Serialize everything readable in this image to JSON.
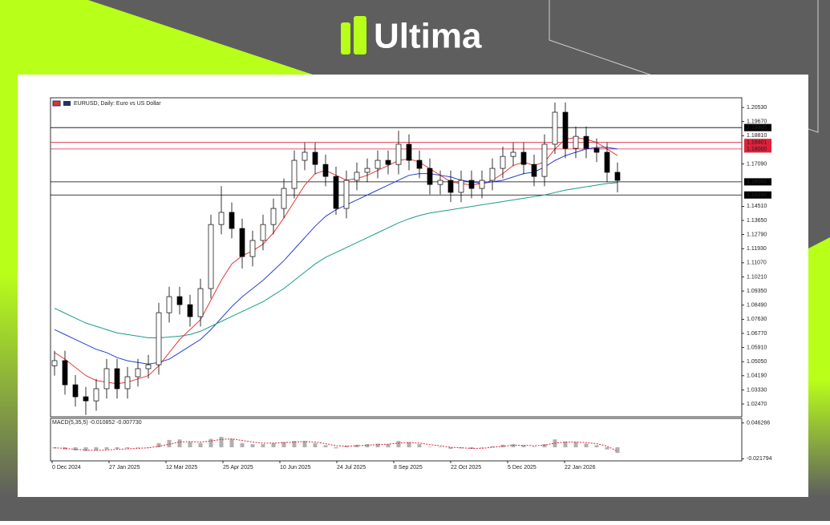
{
  "brand": "Ultima",
  "chart_data": [
    {
      "type": "candlestick",
      "title": "EURUSD, Daily:  Euro vs US Dollar",
      "x_labels": [
        "0 Dec 2024",
        "27 Jan 2025",
        "12 Mar 2025",
        "25 Apr 2025",
        "10 Jun 2025",
        "24 Jul 2025",
        "8 Sep 2025",
        "22 Oct 2025",
        "5 Dec 2025",
        "22 Jan 2026"
      ],
      "open": [
        1.048,
        1.0511,
        1.0364,
        1.0291,
        1.0266,
        1.034,
        1.0462,
        1.034,
        1.0413,
        1.0462,
        1.0486,
        1.0803,
        1.0901,
        1.0852,
        1.0779,
        1.095,
        1.134,
        1.1414,
        1.1316,
        1.1145,
        1.1243,
        1.134,
        1.1438,
        1.156,
        1.1731,
        1.178,
        1.1706,
        1.1633,
        1.1438,
        1.1609,
        1.1658,
        1.1682,
        1.1731,
        1.1706,
        1.1829,
        1.1731,
        1.1682,
        1.1584,
        1.1609,
        1.1536,
        1.1609,
        1.156,
        1.1609,
        1.1682,
        1.1755,
        1.178,
        1.1706,
        1.1633,
        1.1829,
        1.2024,
        1.1804,
        1.1877,
        1.1804,
        1.178,
        1.1658
      ],
      "high": [
        1.0571,
        1.0571,
        1.0424,
        1.0351,
        1.04,
        1.0522,
        1.0522,
        1.0473,
        1.0522,
        1.0546,
        1.0863,
        1.0961,
        1.0961,
        1.0912,
        1.101,
        1.14,
        1.1574,
        1.1474,
        1.1376,
        1.1303,
        1.14,
        1.1498,
        1.162,
        1.1791,
        1.184,
        1.184,
        1.1766,
        1.1693,
        1.1669,
        1.1718,
        1.1742,
        1.1791,
        1.1791,
        1.1911,
        1.1889,
        1.1791,
        1.1742,
        1.1669,
        1.1669,
        1.1669,
        1.1669,
        1.1669,
        1.1742,
        1.1815,
        1.184,
        1.184,
        1.1766,
        1.1889,
        1.2083,
        1.2084,
        1.1937,
        1.1937,
        1.1864,
        1.184,
        1.1718
      ],
      "low": [
        1.042,
        1.0304,
        1.0231,
        1.018,
        1.0206,
        1.028,
        1.028,
        1.028,
        1.0353,
        1.0402,
        1.0426,
        1.0743,
        1.0792,
        1.0719,
        1.0719,
        1.089,
        1.128,
        1.1256,
        1.1072,
        1.1085,
        1.1183,
        1.128,
        1.1378,
        1.15,
        1.1671,
        1.1646,
        1.1573,
        1.1399,
        1.1378,
        1.1549,
        1.1598,
        1.1622,
        1.1646,
        1.1646,
        1.1671,
        1.1622,
        1.1524,
        1.1524,
        1.1477,
        1.1476,
        1.15,
        1.15,
        1.1549,
        1.1622,
        1.1695,
        1.1646,
        1.1573,
        1.1573,
        1.1769,
        1.1744,
        1.1744,
        1.1744,
        1.172,
        1.1598,
        1.1536
      ],
      "close": [
        1.0511,
        1.0364,
        1.0291,
        1.0266,
        1.034,
        1.0462,
        1.034,
        1.0413,
        1.0462,
        1.0486,
        1.0803,
        1.0901,
        1.0852,
        1.0779,
        1.095,
        1.134,
        1.1414,
        1.1316,
        1.1145,
        1.1243,
        1.134,
        1.1438,
        1.156,
        1.1731,
        1.178,
        1.1706,
        1.1633,
        1.1438,
        1.1609,
        1.1658,
        1.1682,
        1.1731,
        1.1706,
        1.1829,
        1.1731,
        1.1682,
        1.1584,
        1.1609,
        1.1536,
        1.1609,
        1.156,
        1.1609,
        1.1682,
        1.1755,
        1.178,
        1.1706,
        1.1633,
        1.1829,
        1.2024,
        1.1804,
        1.1877,
        1.1804,
        1.178,
        1.1658,
        1.1609
      ],
      "series": [
        {
          "color": "#e8393a",
          "values": [
            1.056,
            1.052,
            1.047,
            1.042,
            1.039,
            1.038,
            1.037,
            1.038,
            1.04,
            1.042,
            1.048,
            1.056,
            1.064,
            1.07,
            1.076,
            1.088,
            1.1,
            1.11,
            1.115,
            1.118,
            1.122,
            1.129,
            1.138,
            1.148,
            1.158,
            1.165,
            1.167,
            1.164,
            1.161,
            1.162,
            1.164,
            1.167,
            1.17,
            1.173,
            1.174,
            1.172,
            1.168,
            1.164,
            1.16,
            1.159,
            1.158,
            1.159,
            1.161,
            1.165,
            1.17,
            1.172,
            1.17,
            1.172,
            1.18,
            1.186,
            1.187,
            1.186,
            1.184,
            1.18,
            1.176
          ]
        },
        {
          "color": "#2b3fd1",
          "values": [
            1.07,
            1.067,
            1.064,
            1.061,
            1.058,
            1.056,
            1.053,
            1.051,
            1.05,
            1.049,
            1.05,
            1.052,
            1.056,
            1.06,
            1.064,
            1.07,
            1.077,
            1.084,
            1.09,
            1.095,
            1.1,
            1.106,
            1.112,
            1.119,
            1.126,
            1.133,
            1.139,
            1.143,
            1.146,
            1.149,
            1.152,
            1.155,
            1.158,
            1.161,
            1.164,
            1.165,
            1.165,
            1.164,
            1.163,
            1.161,
            1.16,
            1.159,
            1.16,
            1.161,
            1.163,
            1.165,
            1.166,
            1.169,
            1.173,
            1.176,
            1.178,
            1.18,
            1.181,
            1.181,
            1.18
          ]
        },
        {
          "color": "#1d9a8a",
          "values": [
            1.083,
            1.08,
            1.077,
            1.074,
            1.072,
            1.07,
            1.068,
            1.067,
            1.066,
            1.065,
            1.065,
            1.0655,
            1.066,
            1.067,
            1.069,
            1.072,
            1.075,
            1.078,
            1.081,
            1.084,
            1.087,
            1.091,
            1.095,
            1.1,
            1.105,
            1.11,
            1.114,
            1.117,
            1.12,
            1.123,
            1.126,
            1.129,
            1.132,
            1.135,
            1.1375,
            1.1395,
            1.141,
            1.142,
            1.143,
            1.144,
            1.145,
            1.146,
            1.147,
            1.148,
            1.149,
            1.15,
            1.151,
            1.152,
            1.1535,
            1.155,
            1.156,
            1.157,
            1.158,
            1.159,
            1.1595
          ]
        }
      ],
      "levels": [
        {
          "value": 1.19305,
          "label": "1.19305",
          "color": "#000000"
        },
        {
          "value": 1.18401,
          "label": "1.18401",
          "color": "#e0203a"
        },
        {
          "value": 1.18,
          "label": "1.18000",
          "color": "#e0203a"
        },
        {
          "value": 1.16,
          "label": "1.16000",
          "color": "#000000"
        },
        {
          "value": 1.152,
          "label": "1.15200",
          "color": "#000000"
        }
      ],
      "ylim": [
        1.0169,
        1.2112
      ],
      "yticks": [
        {
          "value": 1.2053,
          "label": "1.20530"
        },
        {
          "value": 1.1967,
          "label": "1.19670"
        },
        {
          "value": 1.1881,
          "label": "1.18810"
        },
        {
          "value": 1.1709,
          "label": "1.17090"
        },
        {
          "value": 1.1451,
          "label": "1.14510"
        },
        {
          "value": 1.1365,
          "label": "1.13650"
        },
        {
          "value": 1.1279,
          "label": "1.12790"
        },
        {
          "value": 1.1193,
          "label": "1.11930"
        },
        {
          "value": 1.1107,
          "label": "1.11070"
        },
        {
          "value": 1.1021,
          "label": "1.10210"
        },
        {
          "value": 1.0935,
          "label": "1.09350"
        },
        {
          "value": 1.0849,
          "label": "1.08490"
        },
        {
          "value": 1.0763,
          "label": "1.07630"
        },
        {
          "value": 1.0677,
          "label": "1.06770"
        },
        {
          "value": 1.0591,
          "label": "1.05910"
        },
        {
          "value": 1.0505,
          "label": "1.05050"
        },
        {
          "value": 1.0419,
          "label": "1.04190"
        },
        {
          "value": 1.0333,
          "label": "1.03330"
        },
        {
          "value": 1.0247,
          "label": "1.02470"
        }
      ]
    },
    {
      "type": "macd",
      "title": "MACD(5,35,5) -0.010852 -0.007730",
      "values": [
        -0.002,
        -0.004,
        -0.006,
        -0.007,
        -0.006,
        -0.004,
        -0.003,
        -0.002,
        -0.001,
        0.0,
        0.008,
        0.014,
        0.015,
        0.01,
        0.008,
        0.016,
        0.02,
        0.016,
        0.008,
        0.006,
        0.006,
        0.008,
        0.01,
        0.012,
        0.012,
        0.008,
        0.004,
        -0.002,
        0.003,
        0.005,
        0.006,
        0.007,
        0.006,
        0.012,
        0.01,
        0.006,
        0.001,
        0.001,
        -0.003,
        -0.002,
        -0.003,
        -0.001,
        0.002,
        0.005,
        0.006,
        0.004,
        0.001,
        0.006,
        0.015,
        0.011,
        0.01,
        0.007,
        0.004,
        -0.004,
        -0.010852
      ],
      "color": "#b0b0b0",
      "signal": {
        "color": "#e0203a",
        "values": [
          -0.001,
          -0.002,
          -0.004,
          -0.005,
          -0.006,
          -0.005,
          -0.004,
          -0.003,
          -0.002,
          -0.001,
          0.002,
          0.006,
          0.01,
          0.011,
          0.01,
          0.012,
          0.015,
          0.016,
          0.013,
          0.01,
          0.008,
          0.008,
          0.009,
          0.01,
          0.011,
          0.01,
          0.007,
          0.003,
          0.002,
          0.003,
          0.004,
          0.005,
          0.006,
          0.008,
          0.009,
          0.008,
          0.005,
          0.003,
          0.0,
          -0.001,
          -0.002,
          -0.002,
          0.0,
          0.002,
          0.004,
          0.004,
          0.003,
          0.004,
          0.008,
          0.01,
          0.01,
          0.009,
          0.007,
          0.002,
          -0.00773
        ]
      },
      "ylim": [
        -0.0228,
        0.0474
      ],
      "yticks": [
        0.046266,
        -0.021794
      ]
    }
  ]
}
